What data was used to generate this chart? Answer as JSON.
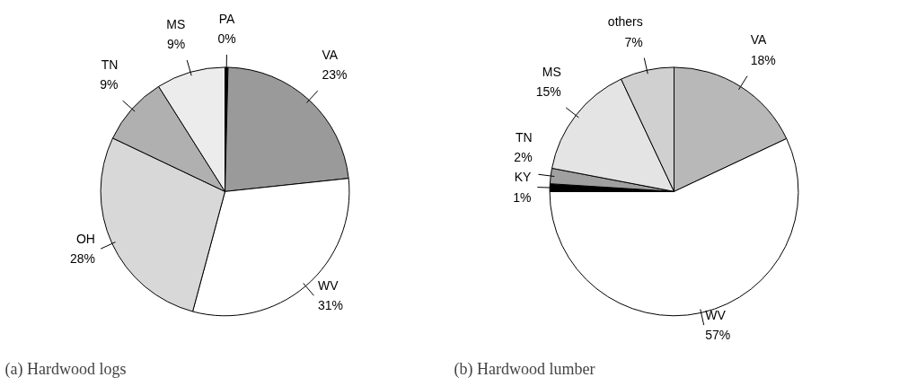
{
  "chart_data": [
    {
      "type": "pie",
      "title": "(a) Hardwood logs",
      "categories": [
        "PA",
        "VA",
        "WV",
        "OH",
        "TN",
        "MS"
      ],
      "values": [
        0.4,
        23,
        31,
        28,
        9,
        9
      ],
      "value_labels": [
        "0%",
        "23%",
        "31%",
        "28%",
        "9%",
        "9%"
      ],
      "colors": [
        "#000000",
        "#9a9a9a",
        "#ffffff",
        "#d8d8d8",
        "#b0b0b0",
        "#ececec"
      ]
    },
    {
      "type": "pie",
      "title": "(b) Hardwood lumber",
      "categories": [
        "VA",
        "WV",
        "KY",
        "TN",
        "MS",
        "others"
      ],
      "values": [
        18,
        57,
        1,
        2,
        15,
        7
      ],
      "value_labels": [
        "18%",
        "57%",
        "1%",
        "2%",
        "15%",
        "7%"
      ],
      "colors": [
        "#b8b8b8",
        "#ffffff",
        "#000000",
        "#a0a0a0",
        "#e4e4e4",
        "#d0d0d0"
      ]
    }
  ]
}
